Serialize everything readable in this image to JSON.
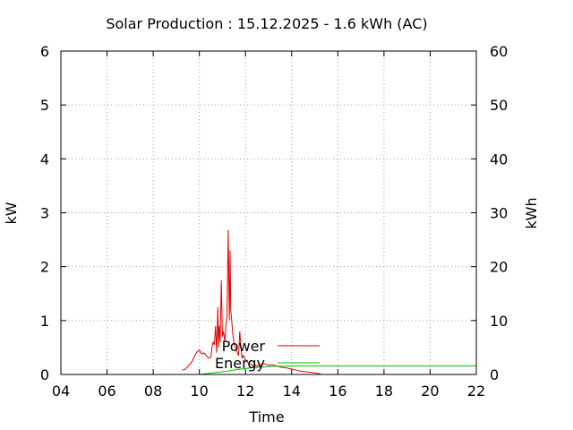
{
  "chart_data": {
    "type": "line",
    "title": "Solar Production : 15.12.2025 - 1.6 kWh (AC)",
    "xlabel": "Time",
    "ylabel": "kW",
    "y2label": "kWh",
    "xlim": [
      4,
      22
    ],
    "ylim": [
      0,
      6
    ],
    "y2lim": [
      0,
      60
    ],
    "x_ticks": [
      "04",
      "06",
      "08",
      "10",
      "12",
      "14",
      "16",
      "18",
      "20",
      "22"
    ],
    "y_ticks": [
      "0",
      "1",
      "2",
      "3",
      "4",
      "5",
      "6"
    ],
    "y2_ticks": [
      "0",
      "10",
      "20",
      "30",
      "40",
      "50",
      "60"
    ],
    "grid": true,
    "legend_position": "bottom-center",
    "colors": {
      "power": "#e00000",
      "energy": "#00c000"
    },
    "series": [
      {
        "name": "Power",
        "axis": "left",
        "x": [
          9.25,
          9.4,
          9.5,
          9.6,
          9.7,
          9.8,
          9.9,
          10.0,
          10.1,
          10.2,
          10.3,
          10.4,
          10.5,
          10.55,
          10.6,
          10.65,
          10.7,
          10.75,
          10.8,
          10.83,
          10.86,
          10.9,
          10.95,
          11.0,
          11.03,
          11.06,
          11.1,
          11.15,
          11.2,
          11.25,
          11.3,
          11.33,
          11.36,
          11.4,
          11.45,
          11.5,
          11.55,
          11.6,
          11.65,
          11.7,
          11.75,
          11.8,
          11.85,
          11.9,
          12.0,
          12.1,
          12.2,
          12.3,
          12.4,
          12.5,
          12.6,
          12.8,
          13.0,
          13.2,
          13.4,
          13.6,
          13.8,
          14.0,
          14.2,
          14.4,
          14.6,
          14.8,
          15.0,
          15.1,
          15.2,
          15.3
        ],
        "y": [
          0.08,
          0.1,
          0.15,
          0.2,
          0.25,
          0.35,
          0.42,
          0.45,
          0.38,
          0.4,
          0.35,
          0.3,
          0.32,
          0.5,
          0.6,
          0.55,
          0.9,
          0.4,
          1.25,
          0.5,
          0.9,
          0.6,
          1.75,
          0.7,
          0.8,
          0.75,
          0.6,
          0.9,
          1.1,
          2.68,
          1.0,
          2.3,
          1.2,
          1.0,
          0.75,
          0.6,
          0.5,
          0.45,
          0.4,
          0.35,
          0.8,
          0.5,
          0.3,
          0.35,
          0.28,
          0.22,
          0.2,
          0.17,
          0.18,
          0.15,
          0.18,
          0.2,
          0.17,
          0.18,
          0.15,
          0.13,
          0.12,
          0.1,
          0.08,
          0.06,
          0.05,
          0.04,
          0.03,
          0.02,
          0.01,
          0.0
        ]
      },
      {
        "name": "Energy",
        "axis": "right",
        "x": [
          10.0,
          10.4,
          10.8,
          11.2,
          11.6,
          12.0,
          12.4,
          12.8,
          13.2,
          13.6,
          14.0,
          14.4,
          14.8,
          15.3,
          22.0
        ],
        "y": [
          0.0,
          0.2,
          0.4,
          0.6,
          0.9,
          1.1,
          1.3,
          1.4,
          1.5,
          1.55,
          1.58,
          1.59,
          1.6,
          1.6,
          1.6
        ]
      }
    ]
  }
}
